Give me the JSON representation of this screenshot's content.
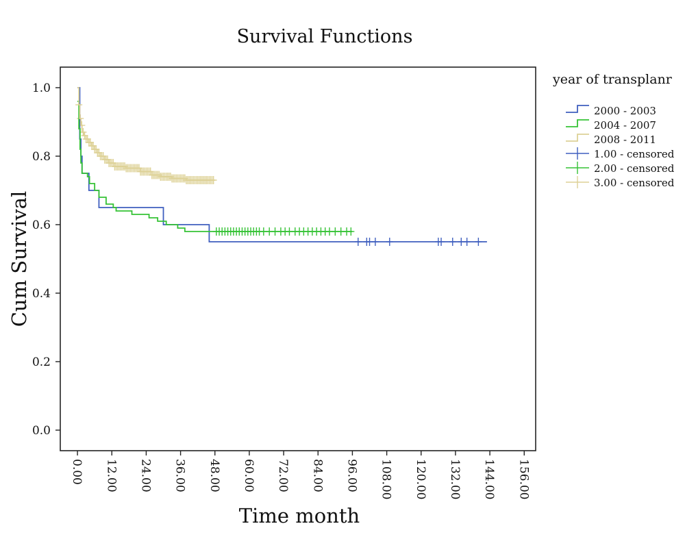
{
  "chart_data": {
    "type": "line",
    "subtype": "kaplan-meier step",
    "title": "Survival Functions",
    "xlabel": "Time month",
    "ylabel": "Cum Survival",
    "xlim": [
      -6,
      160
    ],
    "ylim": [
      -0.06,
      1.06
    ],
    "x_ticks": [
      "0.00",
      "12.00",
      "24.00",
      "36.00",
      "48.00",
      "60.00",
      "72.00",
      "84.00",
      "96.00",
      "108.00",
      "120.00",
      "132.00",
      "144.00",
      "156.00"
    ],
    "y_ticks": [
      "0.0",
      "0.2",
      "0.4",
      "0.6",
      "0.8",
      "1.0"
    ],
    "grid": false,
    "legend": {
      "title": "year of transplanr",
      "placement": "right",
      "entries": [
        "2000 - 2003",
        "2004 - 2007",
        "2008 - 2011",
        "1.00 - censored",
        "2.00 - censored",
        "3.00 - censored"
      ]
    },
    "series": [
      {
        "name": "2000 - 2003",
        "color": "#3f5fbf",
        "steps": [
          [
            0,
            1.0
          ],
          [
            0.8,
            0.85
          ],
          [
            1.2,
            0.8
          ],
          [
            1.6,
            0.75
          ],
          [
            4,
            0.7
          ],
          [
            7.5,
            0.65
          ],
          [
            30,
            0.6
          ],
          [
            46,
            0.55
          ],
          [
            143,
            0.55
          ]
        ],
        "censored_label": "1.00 - censored",
        "censored_color": "#3f5fbf",
        "censored_x": [
          98,
          101,
          102,
          104,
          109,
          126,
          127,
          131,
          134,
          136,
          140
        ]
      },
      {
        "name": "2004 - 2007",
        "color": "#35c235",
        "steps": [
          [
            0,
            0.96
          ],
          [
            0.5,
            0.88
          ],
          [
            0.9,
            0.82
          ],
          [
            1.2,
            0.78
          ],
          [
            1.6,
            0.75
          ],
          [
            3.5,
            0.74
          ],
          [
            4.2,
            0.72
          ],
          [
            6,
            0.7
          ],
          [
            7.5,
            0.68
          ],
          [
            10,
            0.66
          ],
          [
            12.5,
            0.65
          ],
          [
            13.5,
            0.64
          ],
          [
            19,
            0.63
          ],
          [
            25,
            0.62
          ],
          [
            28,
            0.61
          ],
          [
            31,
            0.6
          ],
          [
            35,
            0.59
          ],
          [
            37.5,
            0.58
          ],
          [
            48,
            0.58
          ],
          [
            96,
            0.58
          ]
        ],
        "censored_label": "2.00 - censored",
        "censored_color": "#35c235",
        "censored_x": [
          48.5,
          49.5,
          50.5,
          51.5,
          52.5,
          53.5,
          54.5,
          55.5,
          56.5,
          57.5,
          58.5,
          59.5,
          60.5,
          61.5,
          62.5,
          63.5,
          65,
          67,
          69,
          71,
          72.5,
          74,
          76,
          77.5,
          79,
          80.5,
          82,
          83.5,
          85,
          86.5,
          88,
          90,
          92,
          94,
          95.5
        ]
      },
      {
        "name": "2008 - 2011",
        "color": "#ddd196",
        "steps": [
          [
            0,
            1.0
          ],
          [
            0.5,
            0.95
          ],
          [
            0.8,
            0.91
          ],
          [
            1.2,
            0.89
          ],
          [
            1.6,
            0.87
          ],
          [
            2.2,
            0.86
          ],
          [
            3,
            0.85
          ],
          [
            4,
            0.84
          ],
          [
            5,
            0.83
          ],
          [
            6,
            0.82
          ],
          [
            7,
            0.81
          ],
          [
            8,
            0.8
          ],
          [
            9.5,
            0.79
          ],
          [
            11,
            0.78
          ],
          [
            13,
            0.77
          ],
          [
            17,
            0.765
          ],
          [
            22,
            0.755
          ],
          [
            26,
            0.745
          ],
          [
            29,
            0.74
          ],
          [
            33,
            0.735
          ],
          [
            38,
            0.73
          ],
          [
            48,
            0.73
          ]
        ],
        "censored_label": "3.00 - censored",
        "censored_color": "#ddd196",
        "censored_x": [
          0.5,
          1,
          1.5,
          2,
          2.5,
          3,
          3.5,
          4,
          4.5,
          5,
          5.5,
          6,
          6.5,
          7,
          7.5,
          8,
          8.5,
          9,
          9.5,
          10,
          10.5,
          11,
          11.5,
          12,
          12.5,
          13,
          13.5,
          14,
          14.5,
          15,
          15.5,
          16,
          16.5,
          17,
          17.5,
          18,
          18.5,
          19,
          19.5,
          20,
          20.5,
          21,
          21.5,
          22,
          22.5,
          23,
          23.5,
          24,
          24.5,
          25,
          25.5,
          26,
          26.5,
          27,
          27.5,
          28,
          28.5,
          29,
          29.5,
          30,
          30.5,
          31,
          31.5,
          32,
          32.5,
          33,
          33.5,
          34,
          34.5,
          35,
          35.5,
          36,
          36.5,
          37,
          37.5,
          38,
          38.5,
          39,
          39.5,
          40,
          40.5,
          41,
          41.5,
          42,
          42.5,
          43,
          43.5,
          44,
          44.5,
          45,
          45.5,
          46,
          46.5,
          47,
          47.5
        ]
      }
    ]
  }
}
